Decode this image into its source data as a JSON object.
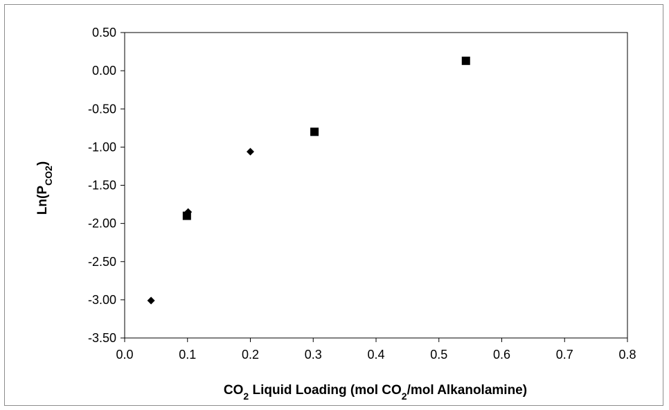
{
  "chart_data": {
    "type": "scatter",
    "title": "",
    "xlabel": {
      "parts": [
        {
          "text": "CO"
        },
        {
          "text": "2",
          "sub": true
        },
        {
          "text": " Liquid Loading (mol CO"
        },
        {
          "text": "2",
          "sub": true
        },
        {
          "text": "/mol Alkanolamine)"
        }
      ]
    },
    "ylabel": {
      "parts": [
        {
          "text": "Ln(P"
        },
        {
          "text": "CO2",
          "sub": true
        },
        {
          "text": ")"
        }
      ]
    },
    "xlim": [
      0.0,
      0.8
    ],
    "ylim": [
      -3.5,
      0.5
    ],
    "xticks": [
      0.0,
      0.1,
      0.2,
      0.3,
      0.4,
      0.5,
      0.6,
      0.7,
      0.8
    ],
    "xtick_labels": [
      "0.0",
      "0.1",
      "0.2",
      "0.3",
      "0.4",
      "0.5",
      "0.6",
      "0.7",
      "0.8"
    ],
    "yticks": [
      0.5,
      0.0,
      -0.5,
      -1.0,
      -1.5,
      -2.0,
      -2.5,
      -3.0,
      -3.5
    ],
    "ytick_labels": [
      "0.50",
      "0.00",
      "-0.50",
      "-1.00",
      "-1.50",
      "-2.00",
      "-2.50",
      "-3.00",
      "-3.50"
    ],
    "grid": false,
    "legend": "none",
    "series": [
      {
        "marker": "diamond",
        "color": "#000000",
        "x": [
          0.042,
          0.101,
          0.2
        ],
        "y": [
          -3.01,
          -1.85,
          -1.06
        ]
      },
      {
        "marker": "square",
        "color": "#000000",
        "x": [
          0.099,
          0.302,
          0.543
        ],
        "y": [
          -1.9,
          -0.8,
          0.13
        ]
      }
    ]
  }
}
